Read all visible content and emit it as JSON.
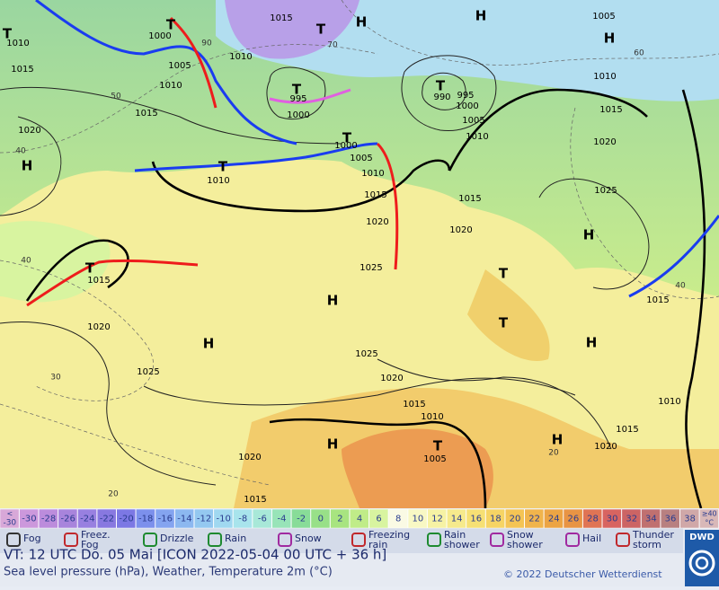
{
  "header": {
    "valid_time": "VT: 12 UTC Do.  05 Mai [ICON 2022-05-04  00 UTC + 36 h]",
    "subtitle": "Sea level pressure (hPa), Weather, Temperature 2m (°C)",
    "copyright": "© 2022 Deutscher Wetterdienst",
    "logo": "DWD"
  },
  "temperature_scale": {
    "first": {
      "top": "<",
      "bottom": "-30"
    },
    "values": [
      -30,
      -28,
      -26,
      -24,
      -22,
      -20,
      -18,
      -16,
      -14,
      -12,
      -10,
      -8,
      -6,
      -4,
      -2,
      0,
      2,
      4,
      6,
      8,
      10,
      12,
      14,
      16,
      18,
      20,
      22,
      24,
      26,
      28,
      30,
      32,
      34,
      36,
      38
    ],
    "last": {
      "top": "≥40",
      "bottom": "°C"
    },
    "colors": [
      "#d8a8d8",
      "#cc98dc",
      "#bc8cdc",
      "#a884dc",
      "#9880e0",
      "#8878e0",
      "#7c78e4",
      "#7c90ec",
      "#84a4f0",
      "#8cb8f0",
      "#94c8f0",
      "#a0d8f0",
      "#a8e4ec",
      "#a8e8d8",
      "#98e4b8",
      "#88dc98",
      "#98e088",
      "#a8e480",
      "#c0ec88",
      "#d8f4a0",
      "#fafae4",
      "#f8f8c4",
      "#f6f2a4",
      "#f6ea8c",
      "#f6e074",
      "#f6d464",
      "#f4c454",
      "#f0b44c",
      "#ec a444",
      "#e89444",
      "#e07454",
      "#d86460",
      "#cc6464",
      "#c07070",
      "#b88080",
      "#d0a8a8",
      "#d8b8b8"
    ]
  },
  "weather_legend": [
    {
      "label": [
        "Fog"
      ]
    },
    {
      "label": [
        "Freez.",
        "Fog"
      ]
    },
    {
      "label": [
        "Drizzle"
      ]
    },
    {
      "label": [
        "Rain"
      ]
    },
    {
      "label": [
        "Snow"
      ]
    },
    {
      "label": [
        "Freezing",
        "rain"
      ]
    },
    {
      "label": [
        "Rain",
        "shower"
      ]
    },
    {
      "label": [
        "Snow",
        "shower"
      ]
    },
    {
      "label": [
        "Hail"
      ]
    },
    {
      "label": [
        "Thunder",
        "storm"
      ]
    }
  ],
  "map": {
    "pressure_labels": [
      "1015",
      "1010",
      "1015",
      "1000",
      "1005",
      "1010",
      "1010",
      "995",
      "1000",
      "990",
      "995",
      "1000",
      "1005",
      "1010",
      "1005",
      "1010",
      "1015",
      "1020",
      "1025",
      "1015",
      "1020",
      "1000",
      "1005",
      "1010",
      "1015",
      "1020",
      "1010",
      "1015",
      "1020",
      "1025",
      "1015",
      "1020",
      "1025",
      "1025",
      "1020",
      "1015",
      "1010",
      "1005",
      "1020",
      "1015",
      "1010",
      "1015",
      "1020",
      "1015"
    ],
    "centers": [
      "H",
      "H",
      "H",
      "H",
      "H",
      "H",
      "H",
      "H",
      "H",
      "H",
      "T",
      "T",
      "T",
      "T",
      "T",
      "T",
      "T",
      "T",
      "T",
      "T",
      "T"
    ],
    "temperature_labels": [
      "40",
      "50",
      "40",
      "30",
      "20",
      "20",
      "60",
      "70",
      "90",
      "40"
    ]
  }
}
